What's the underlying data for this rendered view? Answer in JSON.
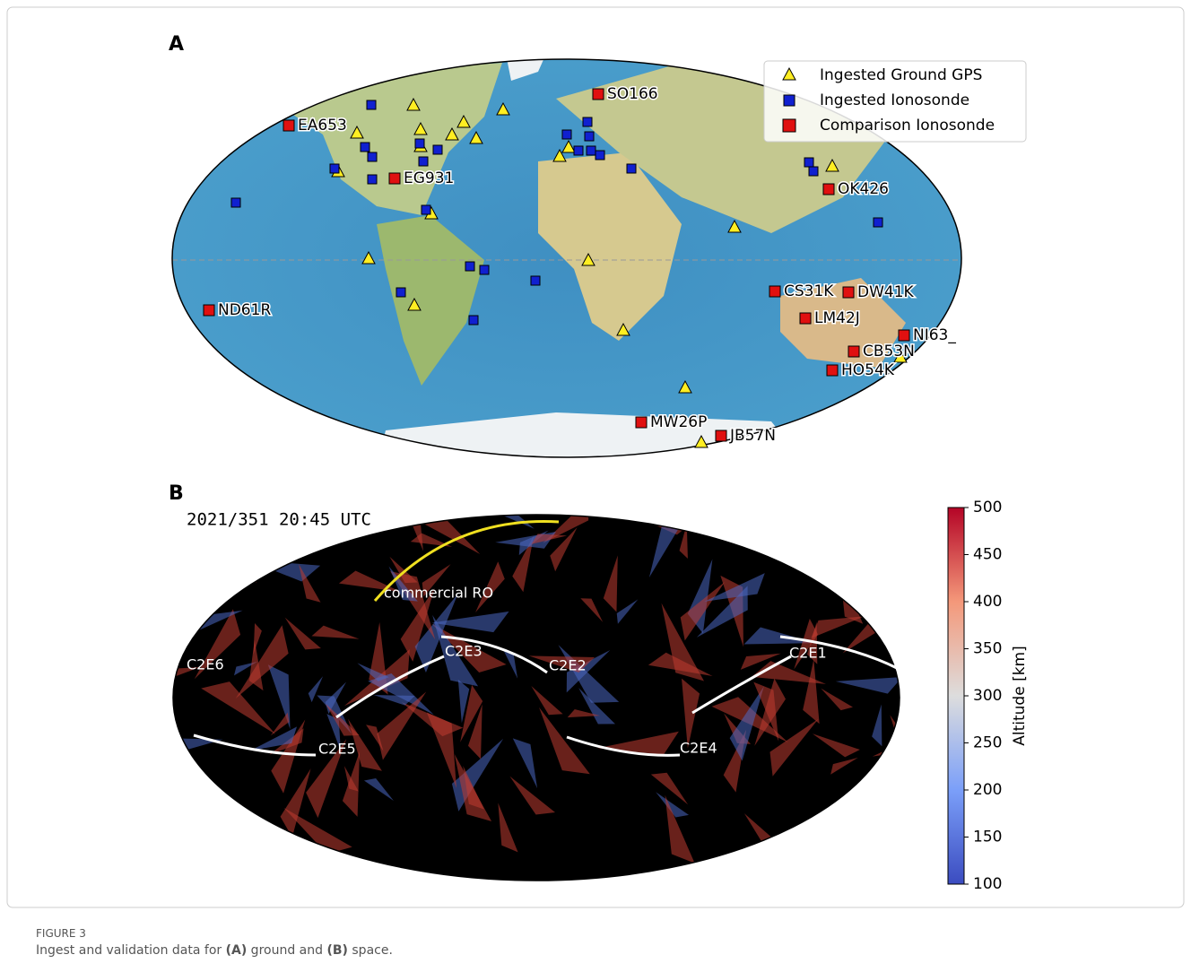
{
  "panel_a": {
    "label": "A",
    "legend": [
      "Ingested Ground GPS",
      "Ingested Ionosonde",
      "Comparison Ionosonde"
    ],
    "stations": [
      "EA653",
      "SO166",
      "EG931",
      "OK426",
      "ND61R",
      "CS31K",
      "DW41K",
      "LM42J",
      "NI63_",
      "CB53N",
      "HO54K",
      "MW26P",
      "JB57N"
    ]
  },
  "panel_b": {
    "label": "B",
    "timestamp": "2021/351 20:45 UTC",
    "annotations": [
      "commercial RO",
      "C2E6",
      "C2E3",
      "C2E2",
      "C2E1",
      "C2E5",
      "C2E4"
    ],
    "colorbar": {
      "label": "Altitude [km]",
      "lim": [
        100,
        500
      ],
      "ticks": [
        100,
        150,
        200,
        250,
        300,
        350,
        400,
        450,
        500
      ]
    }
  },
  "caption": {
    "label": "FIGURE 3",
    "text": [
      "Ingest and validation data for ",
      "(A)",
      " ground and ",
      "(B)",
      " space."
    ]
  }
}
